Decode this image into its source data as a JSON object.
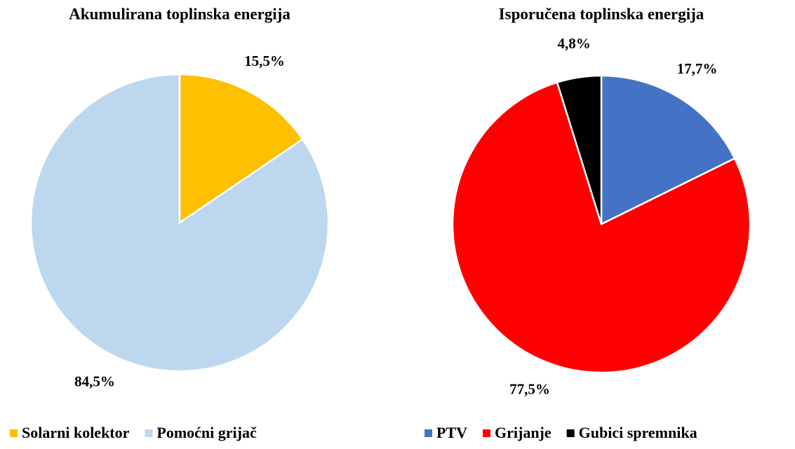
{
  "chart_data": [
    {
      "type": "pie",
      "title": "Akumulirana toplinska energija",
      "categories": [
        "Solarni kolektor",
        "Pomoćni grijač"
      ],
      "values": [
        15.5,
        84.5
      ],
      "value_labels": [
        "15,5%",
        "84,5%"
      ],
      "colors": [
        "#FFC000",
        "#BDD7EE"
      ],
      "legend": "bottom"
    },
    {
      "type": "pie",
      "title": "Isporučena toplinska energija",
      "categories": [
        "PTV",
        "Grijanje",
        "Gubici spremnika"
      ],
      "values": [
        17.7,
        77.5,
        4.8
      ],
      "value_labels": [
        "17,7%",
        "77,5%",
        "4,8%"
      ],
      "colors": [
        "#4472C4",
        "#FF0000",
        "#000000"
      ],
      "legend": "bottom"
    }
  ]
}
